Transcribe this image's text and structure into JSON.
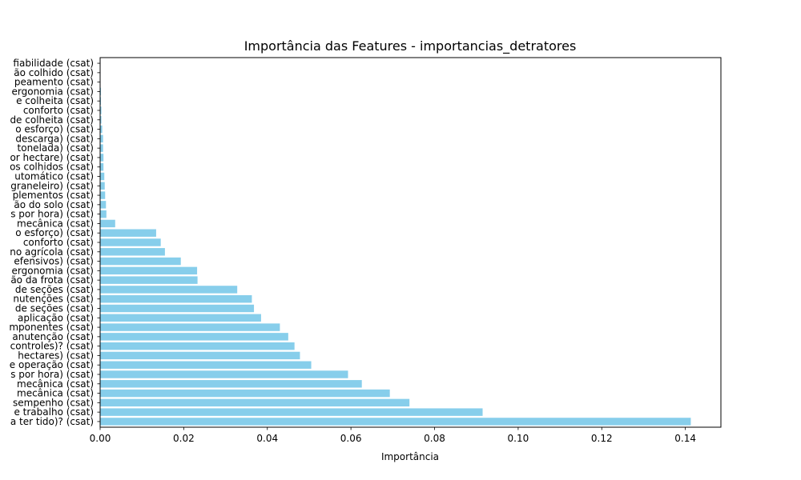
{
  "chart_data": {
    "type": "bar",
    "orientation": "horizontal",
    "title": "Importância das Features - importancias_detratores",
    "xlabel": "Importância",
    "ylabel": "",
    "xlim": [
      0,
      0.1485
    ],
    "xticks": [
      0.0,
      0.02,
      0.04,
      0.06,
      0.08,
      0.1,
      0.12,
      0.14
    ],
    "xtick_labels": [
      "0.00",
      "0.02",
      "0.04",
      "0.06",
      "0.08",
      "0.10",
      "0.12",
      "0.14"
    ],
    "bar_color": "#87CEEB",
    "grid": false,
    "categories": [
      "a ter tido)? (csat)",
      "e trabalho (csat)",
      "sempenho (csat)",
      "mecânica (csat)",
      "mecânica (csat)",
      "s por hora) (csat)",
      "e operação (csat)",
      "hectares) (csat)",
      "controles)? (csat)",
      "anutenção (csat)",
      "mponentes (csat)",
      "aplicação (csat)",
      "de seções (csat)",
      "nutenções (csat)",
      "de seções (csat)",
      "ão da frota (csat)",
      "ergonomia (csat)",
      "efensivos) (csat)",
      "no agrícola (csat)",
      "conforto (csat)",
      "o esforço) (csat)",
      "mecânica (csat)",
      "s por hora) (csat)",
      "ão do solo (csat)",
      "plementos (csat)",
      "graneleiro) (csat)",
      "utomático (csat)",
      "os colhidos (csat)",
      "or hectare) (csat)",
      "tonelada) (csat)",
      "descarga) (csat)",
      "o esforço) (csat)",
      "de colheita (csat)",
      "conforto (csat)",
      "e colheita (csat)",
      "ergonomia (csat)",
      "peamento (csat)",
      "ão colhido (csat)",
      "fiabilidade (csat)"
    ],
    "values": [
      0.1413,
      0.0915,
      0.074,
      0.0693,
      0.0626,
      0.0593,
      0.0505,
      0.0478,
      0.0465,
      0.045,
      0.043,
      0.0385,
      0.0368,
      0.0363,
      0.0328,
      0.0233,
      0.0232,
      0.0193,
      0.0155,
      0.0145,
      0.0134,
      0.0036,
      0.0015,
      0.0014,
      0.0012,
      0.0011,
      0.001,
      0.0008,
      0.0008,
      0.0007,
      0.0007,
      0.0005,
      0.0003,
      0.0003,
      0.0002,
      0.0002,
      0.0001,
      0.0001,
      0.0001
    ]
  }
}
